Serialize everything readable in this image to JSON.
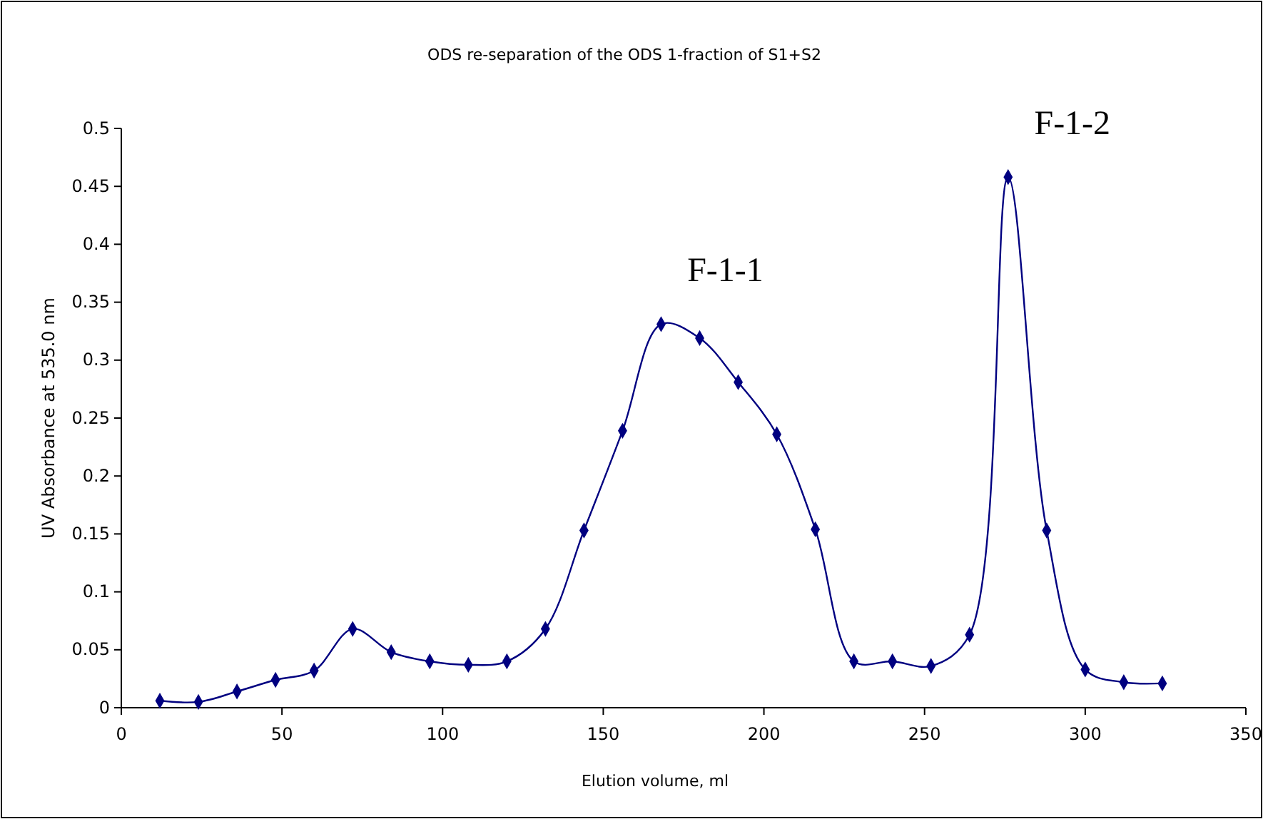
{
  "chart_data": {
    "type": "line",
    "title": "ODS re-separation of the ODS 1-fraction of S1+S2",
    "xlabel": "Elution volume, ml",
    "ylabel": "UV Absorbance at 535.0 nm",
    "x": [
      12,
      24,
      36,
      48,
      60,
      72,
      84,
      96,
      108,
      120,
      132,
      144,
      156,
      168,
      180,
      192,
      204,
      216,
      228,
      240,
      252,
      264,
      276,
      288,
      300,
      312,
      324
    ],
    "series": [
      {
        "color": "#000080",
        "values": [
          0.006,
          0.005,
          0.014,
          0.024,
          0.032,
          0.068,
          0.048,
          0.04,
          0.037,
          0.04,
          0.068,
          0.153,
          0.239,
          0.331,
          0.319,
          0.281,
          0.236,
          0.154,
          0.04,
          0.04,
          0.036,
          0.063,
          0.458,
          0.153,
          0.033,
          0.022,
          0.021
        ]
      }
    ],
    "xlim": [
      0,
      350
    ],
    "xticks": [
      0,
      50,
      100,
      150,
      200,
      250,
      300,
      350
    ],
    "ylim": [
      0,
      0.5
    ],
    "yticks": [
      0,
      0.05,
      0.1,
      0.15,
      0.2,
      0.25,
      0.3,
      0.35,
      0.4,
      0.45,
      0.5
    ],
    "marker": "diamond",
    "line_style": "solid",
    "grid": false,
    "annotations": [
      {
        "text": "F-1-1",
        "x": 168,
        "y": 0.331
      },
      {
        "text": "F-1-2",
        "x": 276,
        "y": 0.458
      }
    ]
  }
}
